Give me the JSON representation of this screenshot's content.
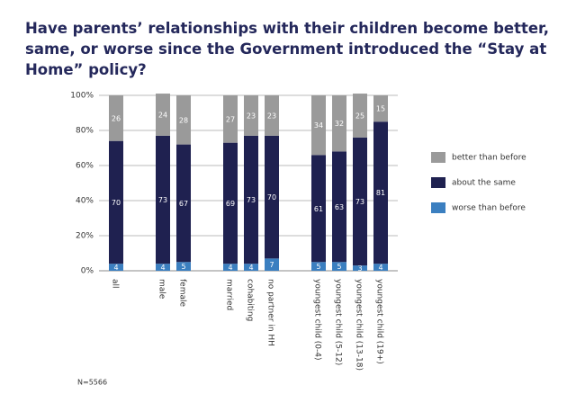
{
  "chart_data": {
    "type": "stacked_bar",
    "title": "Have parents’ relationships with their children become better, same, or worse since the Government introduced the “Stay at Home” policy?",
    "categories": [
      "all",
      "male",
      "female",
      "married",
      "cohabiting",
      "no partner in HH",
      "youngest child (0-4)",
      "youngest child (5-12)",
      "youngest child (13-18)",
      "youngest child (19+)"
    ],
    "series": [
      {
        "name": "worse than before",
        "color": "#3b7fc0",
        "values": [
          4,
          4,
          5,
          4,
          4,
          7,
          5,
          5,
          3,
          4
        ]
      },
      {
        "name": "about the same",
        "color": "#1f2150",
        "values": [
          70,
          73,
          67,
          69,
          73,
          70,
          61,
          63,
          73,
          81
        ]
      },
      {
        "name": "better than before",
        "color": "#9a9a9a",
        "values": [
          26,
          24,
          28,
          27,
          23,
          23,
          34,
          32,
          25,
          15
        ]
      }
    ],
    "ylim": [
      0,
      100
    ],
    "yticks": [
      {
        "value": 0,
        "label": "0%"
      },
      {
        "value": 20,
        "label": "20%"
      },
      {
        "value": 40,
        "label": "40%"
      },
      {
        "value": 60,
        "label": "60%"
      },
      {
        "value": 80,
        "label": "80%"
      },
      {
        "value": 100,
        "label": "100%"
      }
    ],
    "grid": true,
    "legend": "right",
    "note": "N=5566"
  }
}
